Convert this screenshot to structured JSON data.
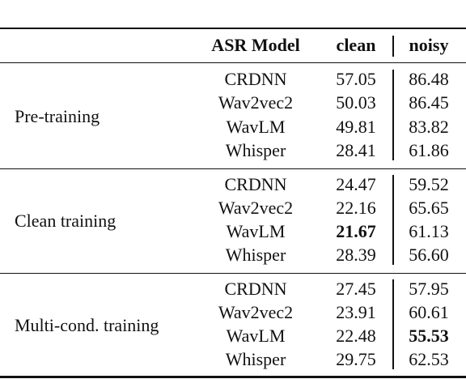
{
  "table": {
    "header": [
      "ASR Model",
      "clean",
      "noisy"
    ],
    "groups": [
      {
        "label": "Pre-training",
        "rows": [
          [
            "CRDNN",
            "57.05",
            "86.48"
          ],
          [
            "Wav2vec2",
            "50.03",
            "86.45"
          ],
          [
            "WavLM",
            "49.81",
            "83.82"
          ],
          [
            "Whisper",
            "28.41",
            "61.86"
          ]
        ]
      },
      {
        "label": "Clean training",
        "rows": [
          [
            "CRDNN",
            "24.47",
            "59.52"
          ],
          [
            "Wav2vec2",
            "22.16",
            "65.65"
          ],
          [
            "WavLM",
            "21.67",
            "61.13"
          ],
          [
            "Whisper",
            "28.39",
            "56.60"
          ]
        ]
      },
      {
        "label": "Multi-cond. training",
        "rows": [
          [
            "CRDNN",
            "27.45",
            "57.95"
          ],
          [
            "Wav2vec2",
            "23.91",
            "60.61"
          ],
          [
            "WavLM",
            "22.48",
            "55.53"
          ],
          [
            "Whisper",
            "29.75",
            "62.53"
          ]
        ]
      }
    ],
    "bold": [
      {
        "group": 1,
        "row": 2,
        "col": 1
      },
      {
        "group": 2,
        "row": 2,
        "col": 2
      }
    ]
  }
}
